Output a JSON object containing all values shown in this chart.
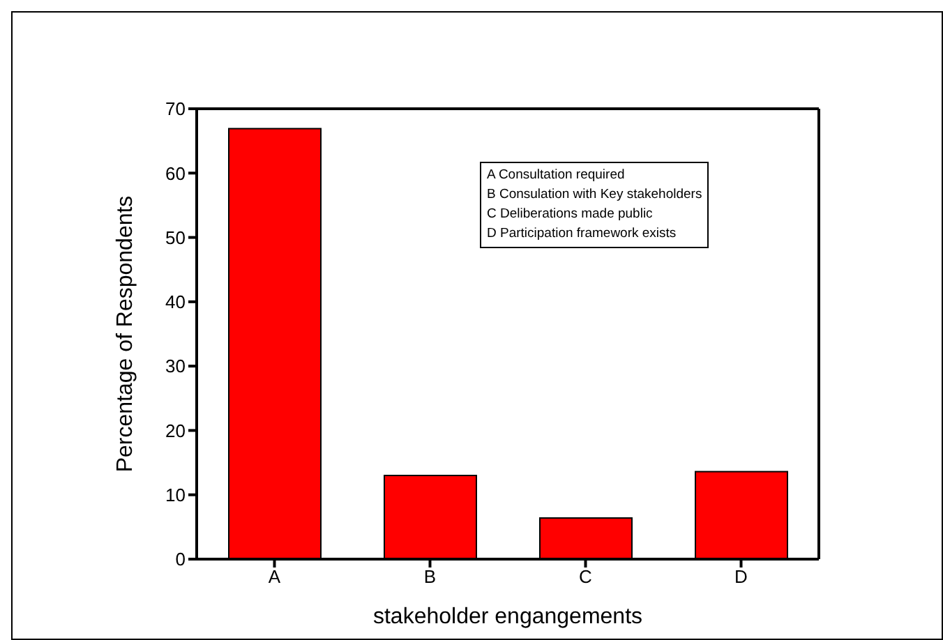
{
  "chart_data": {
    "type": "bar",
    "xlabel": "stakeholder engangements",
    "ylabel": "Percentage of Respondents",
    "categories": [
      "A",
      "B",
      "C",
      "D"
    ],
    "values": [
      66.9,
      13,
      6.4,
      13.6
    ],
    "color": "#ff0000",
    "ylim": [
      0,
      70
    ],
    "yticks": [
      0,
      10,
      20,
      30,
      40,
      50,
      60,
      70
    ],
    "grid": false,
    "annotations": [
      "A Consultation required",
      "B Consulation with Key stakeholders",
      "C Deliberations made public",
      "D Participation framework exists"
    ]
  }
}
